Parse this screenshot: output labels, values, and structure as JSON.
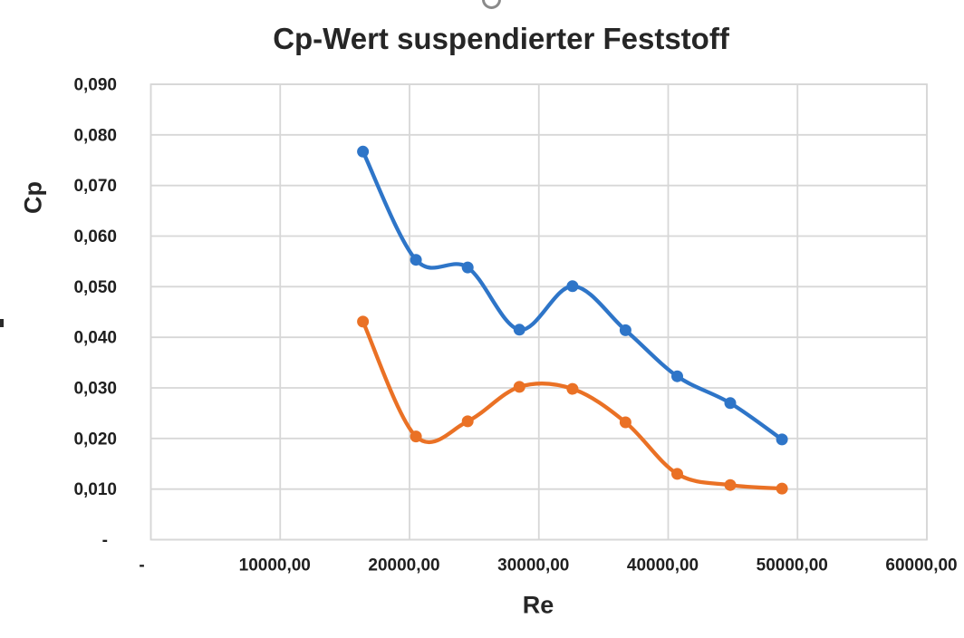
{
  "chart": {
    "title": "Cp-Wert suspendierter Feststoff"
  },
  "colors": {
    "grid": "#d7d7d7",
    "text": "#1f1f1f",
    "title_text": "#262626",
    "handle": "#8a8a8a",
    "series_blue": "#2E75C8",
    "series_orange": "#EA7125"
  },
  "chart_data": {
    "type": "line",
    "title": "Cp-Wert suspendierter Feststoff",
    "xlabel": "Re",
    "ylabel": "Cp",
    "xlim": [
      0,
      60000
    ],
    "ylim": [
      0,
      0.09
    ],
    "grid": true,
    "smooth_lines": true,
    "legend": "none",
    "markers": "circle",
    "x_ticks": {
      "values": [
        0,
        10000,
        20000,
        30000,
        40000,
        50000,
        60000
      ],
      "labels": [
        "-",
        "10000,00",
        "20000,00",
        "30000,00",
        "40000,00",
        "50000,00",
        "60000,00"
      ]
    },
    "y_ticks": {
      "values": [
        0,
        0.01,
        0.02,
        0.03,
        0.04,
        0.05,
        0.06,
        0.07,
        0.08,
        0.09
      ],
      "labels": [
        "-",
        "0,010",
        "0,020",
        "0,030",
        "0,040",
        "0,050",
        "0,060",
        "0,070",
        "0,080",
        "0,090"
      ]
    },
    "series": [
      {
        "id": "blue",
        "color": "#2E75C8",
        "x": [
          16400,
          20500,
          24500,
          28500,
          32600,
          36700,
          40700,
          44800,
          48800
        ],
        "y": [
          0.0767,
          0.0553,
          0.0538,
          0.0415,
          0.0501,
          0.0414,
          0.0323,
          0.027,
          0.0198
        ]
      },
      {
        "id": "orange",
        "color": "#EA7125",
        "x": [
          16400,
          20500,
          24500,
          28500,
          32600,
          36700,
          40700,
          44800,
          48800
        ],
        "y": [
          0.0431,
          0.0204,
          0.0234,
          0.0302,
          0.0298,
          0.0232,
          0.013,
          0.0108,
          0.0101
        ]
      }
    ]
  }
}
